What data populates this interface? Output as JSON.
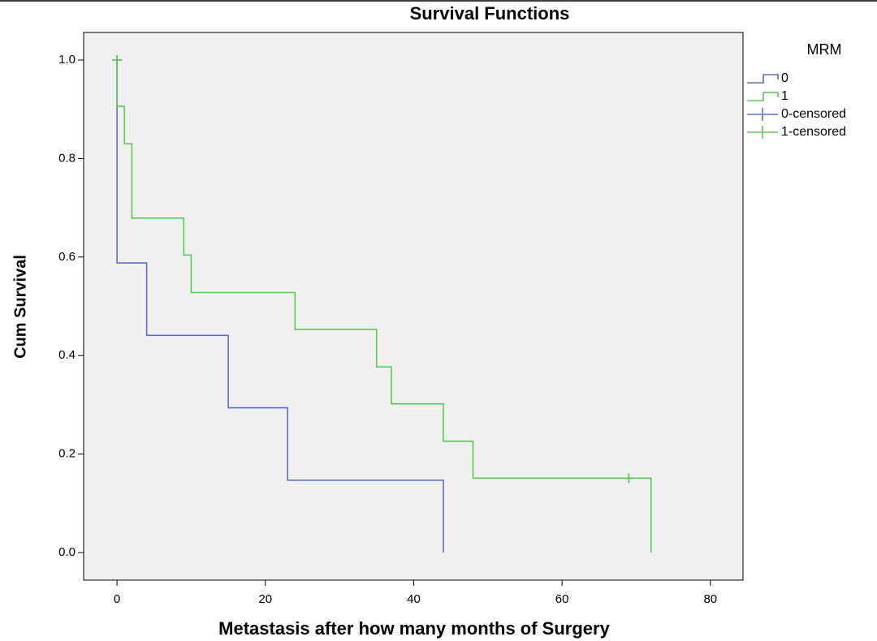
{
  "chart_data": {
    "type": "survival",
    "title": "Survival Functions",
    "x_label": "Metastasis after how many months of Surgery",
    "y_label": "Cum Survival",
    "legend_title": "MRM",
    "xlim": [
      -4.5,
      84.4
    ],
    "ylim": [
      -0.056,
      1.056
    ],
    "xticks": [
      0,
      20,
      40,
      60,
      80
    ],
    "yticks": [
      {
        "value": 0,
        "label": "0.0"
      },
      {
        "value": 0.2,
        "label": "0.2"
      },
      {
        "value": 0.4,
        "label": "0.4"
      },
      {
        "value": 0.6,
        "label": "0.6"
      },
      {
        "value": 0.8,
        "label": "0.8"
      },
      {
        "value": 1,
        "label": "1.0"
      }
    ],
    "series": [
      {
        "name": "0",
        "color": "#5b70c2",
        "style": "step",
        "x": [
          0,
          0,
          4,
          15,
          23,
          44
        ],
        "values": [
          1.0,
          0.588,
          0.441,
          0.294,
          0.147,
          0.0
        ]
      },
      {
        "name": "1",
        "color": "#5cc55c",
        "style": "step",
        "x": [
          0,
          0,
          1,
          2,
          9,
          10,
          24,
          35,
          37,
          44,
          48,
          72
        ],
        "values": [
          1.0,
          0.906,
          0.83,
          0.679,
          0.604,
          0.528,
          0.453,
          0.377,
          0.302,
          0.226,
          0.151,
          0.0
        ]
      },
      {
        "name": "0-censored",
        "color": "#5b70c2",
        "style": "cross",
        "x": [],
        "values": []
      },
      {
        "name": "1-censored",
        "color": "#5cc55c",
        "style": "cross",
        "x": [
          0,
          69
        ],
        "values": [
          1.0,
          0.151
        ]
      }
    ]
  }
}
